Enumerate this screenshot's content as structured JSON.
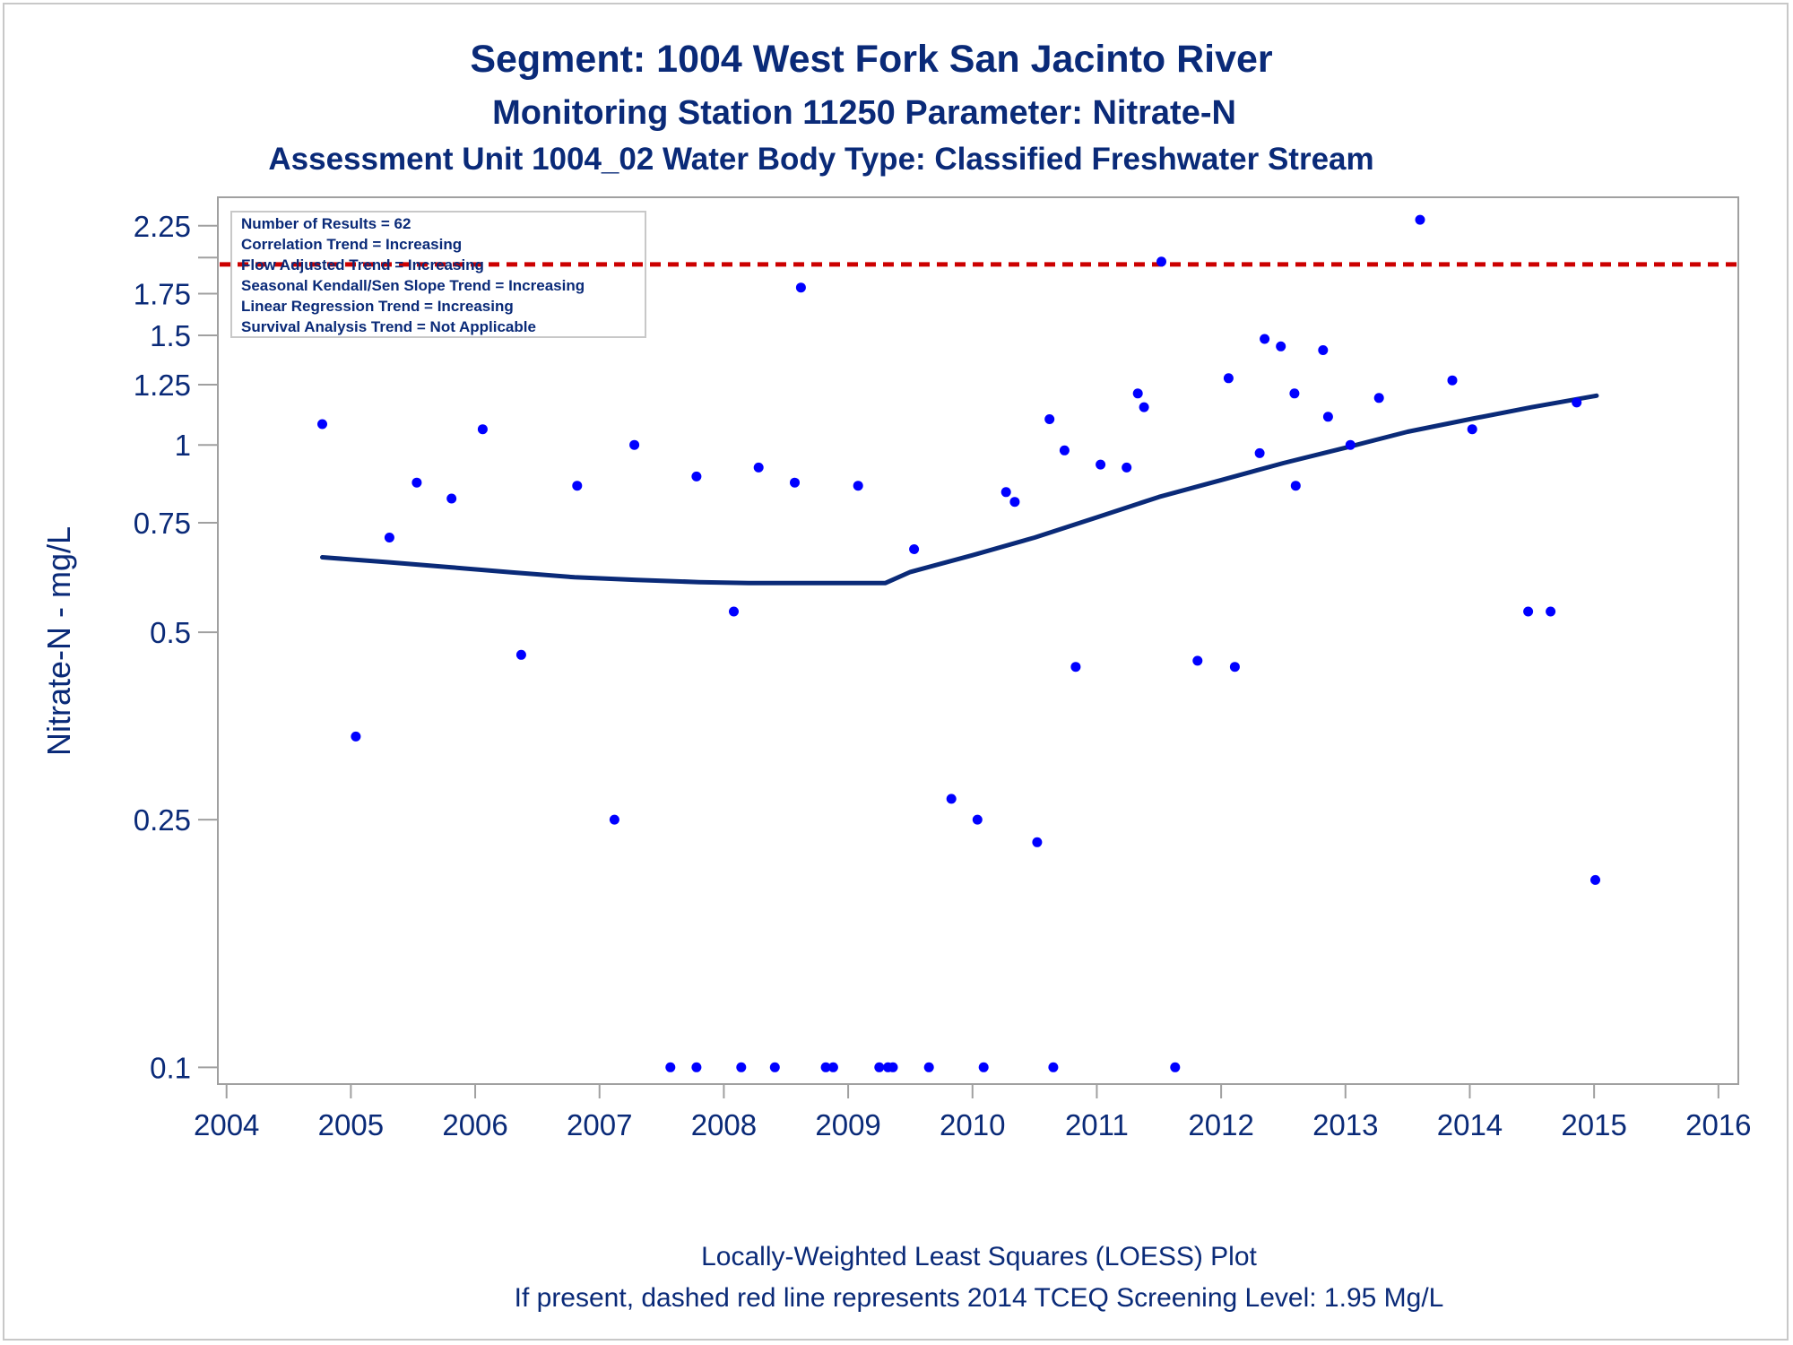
{
  "titles": {
    "line1": "Segment: 1004  West Fork San Jacinto River",
    "line2": "Monitoring Station 11250 Parameter: Nitrate-N",
    "line3": "Assessment Unit 1004_02   Water Body Type: Classified Freshwater Stream"
  },
  "stats_box": [
    "Number of Results = 62",
    "Correlation Trend = Increasing",
    "Flow Adjusted Trend = Increasing",
    "Seasonal Kendall/Sen Slope Trend = Increasing",
    "Linear Regression Trend = Increasing",
    "Survival Analysis Trend = Not Applicable"
  ],
  "footnotes": {
    "line1": "Locally-Weighted Least Squares (LOESS) Plot",
    "line2": "If present, dashed red line represents 2014 TCEQ Screening Level: 1.95 Mg/L"
  },
  "colors": {
    "text": "#0a2a78",
    "points": "#0000ff",
    "loess": "#0a2a78",
    "screening": "#cc0000",
    "frame": "#a0a0a0"
  },
  "chart_data": {
    "type": "scatter",
    "ylabel": "Nitrate-N - mg/L",
    "xlabel": "",
    "x_ticks": [
      "2004",
      "2005",
      "2006",
      "2007",
      "2008",
      "2009",
      "2010",
      "2011",
      "2012",
      "2013",
      "2014",
      "2015",
      "2016"
    ],
    "y_ticks": [
      {
        "v": 0.1,
        "label": "0.1"
      },
      {
        "v": 0.25,
        "label": "0.25"
      },
      {
        "v": 0.5,
        "label": "0.5"
      },
      {
        "v": 0.75,
        "label": "0.75"
      },
      {
        "v": 1,
        "label": "1"
      },
      {
        "v": 1.25,
        "label": "1.25"
      },
      {
        "v": 1.5,
        "label": "1.5"
      },
      {
        "v": 1.75,
        "label": "1.75"
      },
      {
        "v": 2.25,
        "label": "2.25"
      }
    ],
    "y_minor_ticks": [
      2.0
    ],
    "y_scale": "log",
    "xlim": [
      2003.93,
      2016.16
    ],
    "ylim": [
      0.094,
      2.5
    ],
    "screening_level": 1.95,
    "points": [
      {
        "x": 2004.77,
        "y": 1.08
      },
      {
        "x": 2005.04,
        "y": 0.34
      },
      {
        "x": 2005.31,
        "y": 0.71
      },
      {
        "x": 2005.53,
        "y": 0.87
      },
      {
        "x": 2005.81,
        "y": 0.82
      },
      {
        "x": 2006.06,
        "y": 1.06
      },
      {
        "x": 2006.37,
        "y": 0.46
      },
      {
        "x": 2006.82,
        "y": 0.86
      },
      {
        "x": 2007.12,
        "y": 0.25
      },
      {
        "x": 2007.28,
        "y": 1.0
      },
      {
        "x": 2007.57,
        "y": 0.1
      },
      {
        "x": 2007.78,
        "y": 0.89
      },
      {
        "x": 2007.78,
        "y": 0.1
      },
      {
        "x": 2008.08,
        "y": 0.54
      },
      {
        "x": 2008.14,
        "y": 0.1
      },
      {
        "x": 2008.28,
        "y": 0.92
      },
      {
        "x": 2008.41,
        "y": 0.1
      },
      {
        "x": 2008.57,
        "y": 0.87
      },
      {
        "x": 2008.62,
        "y": 1.79
      },
      {
        "x": 2008.82,
        "y": 0.1
      },
      {
        "x": 2008.88,
        "y": 0.1
      },
      {
        "x": 2009.08,
        "y": 0.86
      },
      {
        "x": 2009.25,
        "y": 0.1
      },
      {
        "x": 2009.32,
        "y": 0.1
      },
      {
        "x": 2009.36,
        "y": 0.1
      },
      {
        "x": 2009.53,
        "y": 0.68
      },
      {
        "x": 2009.65,
        "y": 0.1
      },
      {
        "x": 2009.83,
        "y": 0.27
      },
      {
        "x": 2010.04,
        "y": 0.25
      },
      {
        "x": 2010.09,
        "y": 0.1
      },
      {
        "x": 2010.27,
        "y": 0.84
      },
      {
        "x": 2010.34,
        "y": 0.81
      },
      {
        "x": 2010.52,
        "y": 0.23
      },
      {
        "x": 2010.62,
        "y": 1.1
      },
      {
        "x": 2010.65,
        "y": 0.1
      },
      {
        "x": 2010.74,
        "y": 0.98
      },
      {
        "x": 2010.83,
        "y": 0.44
      },
      {
        "x": 2011.03,
        "y": 0.93
      },
      {
        "x": 2011.24,
        "y": 0.92
      },
      {
        "x": 2011.33,
        "y": 1.21
      },
      {
        "x": 2011.38,
        "y": 1.15
      },
      {
        "x": 2011.52,
        "y": 1.97
      },
      {
        "x": 2011.63,
        "y": 0.1
      },
      {
        "x": 2011.81,
        "y": 0.45
      },
      {
        "x": 2012.06,
        "y": 1.28
      },
      {
        "x": 2012.11,
        "y": 0.44
      },
      {
        "x": 2012.31,
        "y": 0.97
      },
      {
        "x": 2012.35,
        "y": 1.48
      },
      {
        "x": 2012.48,
        "y": 1.44
      },
      {
        "x": 2012.59,
        "y": 1.21
      },
      {
        "x": 2012.6,
        "y": 0.86
      },
      {
        "x": 2012.82,
        "y": 1.42
      },
      {
        "x": 2012.86,
        "y": 1.11
      },
      {
        "x": 2013.04,
        "y": 1.0
      },
      {
        "x": 2013.27,
        "y": 1.19
      },
      {
        "x": 2013.6,
        "y": 2.3
      },
      {
        "x": 2013.86,
        "y": 1.27
      },
      {
        "x": 2014.02,
        "y": 1.06
      },
      {
        "x": 2014.47,
        "y": 0.54
      },
      {
        "x": 2014.65,
        "y": 0.54
      },
      {
        "x": 2014.86,
        "y": 1.17
      },
      {
        "x": 2015.01,
        "y": 0.2
      }
    ],
    "loess": {
      "name": "LOESS",
      "x": [
        2004.77,
        2005.3,
        2005.8,
        2006.3,
        2006.8,
        2007.3,
        2007.8,
        2008.2,
        2008.8,
        2009.3,
        2009.5,
        2010.0,
        2010.5,
        2011.0,
        2011.5,
        2012.0,
        2012.5,
        2013.0,
        2013.5,
        2014.0,
        2014.5,
        2015.02
      ],
      "y": [
        0.66,
        0.648,
        0.636,
        0.624,
        0.613,
        0.607,
        0.602,
        0.6,
        0.6,
        0.6,
        0.625,
        0.665,
        0.71,
        0.765,
        0.825,
        0.878,
        0.935,
        0.99,
        1.05,
        1.1,
        1.15,
        1.2
      ]
    }
  }
}
